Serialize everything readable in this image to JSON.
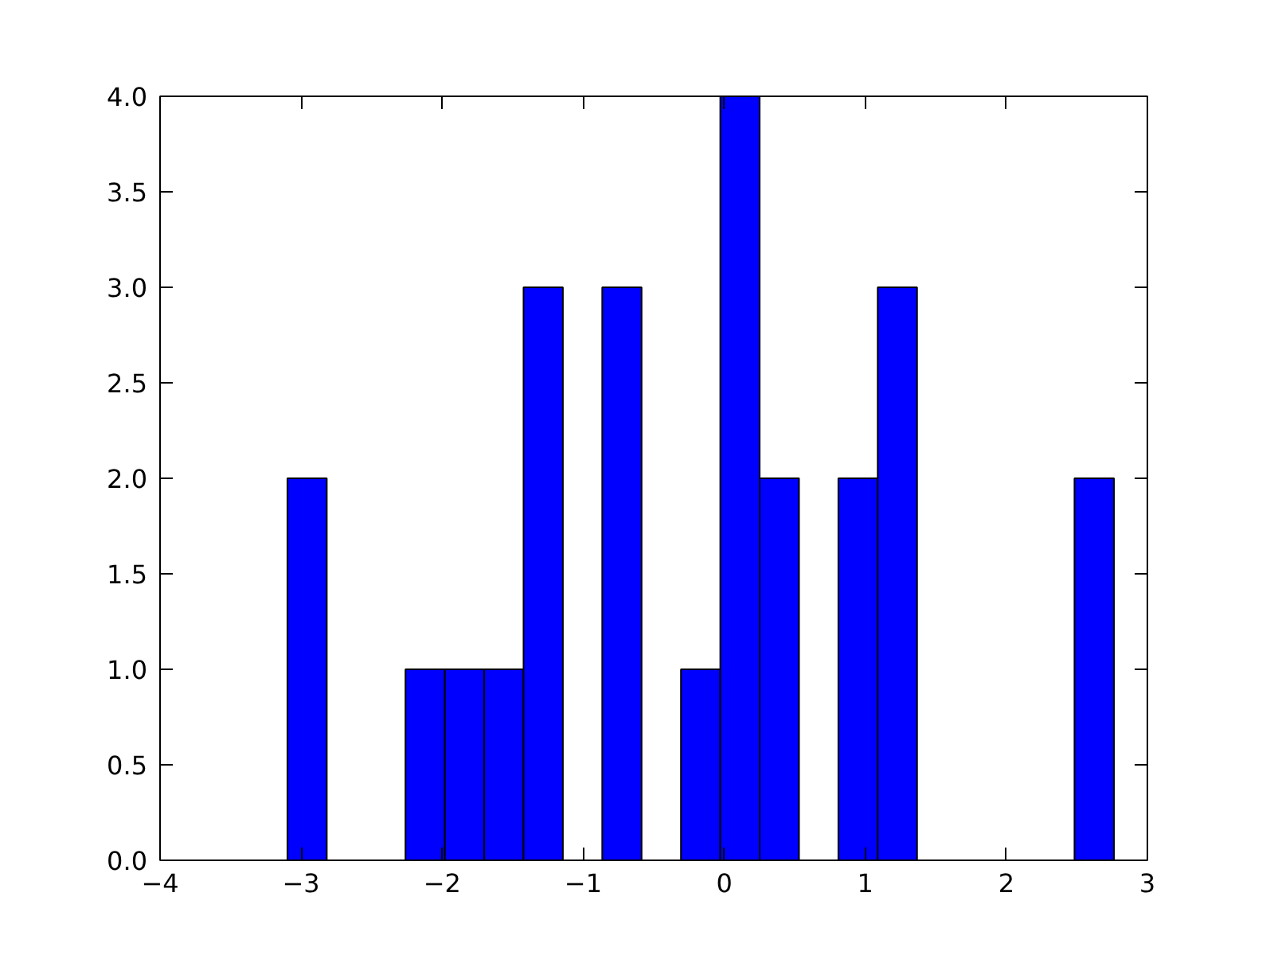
{
  "chart_data": {
    "type": "histogram",
    "bins": [
      -3.097,
      -2.818,
      -2.539,
      -2.26,
      -1.981,
      -1.702,
      -1.423,
      -1.144,
      -0.865,
      -0.586,
      -0.307,
      -0.028,
      0.251,
      0.53,
      0.809,
      1.088,
      1.367,
      1.646,
      1.925,
      2.204,
      2.483,
      2.763
    ],
    "values": [
      2,
      0,
      0,
      1,
      1,
      1,
      3,
      0,
      3,
      0,
      1,
      4,
      2,
      0,
      2,
      3,
      0,
      0,
      0,
      0,
      2
    ],
    "color": "#0000ff",
    "xlim": [
      -4,
      3
    ],
    "xticks": [
      {
        "value": -4,
        "label": "−4"
      },
      {
        "value": -3,
        "label": "−3"
      },
      {
        "value": -2,
        "label": "−2"
      },
      {
        "value": -1,
        "label": "−1"
      },
      0,
      1,
      2,
      3
    ],
    "ylim": [
      0,
      4
    ],
    "yticks": [
      {
        "value": 0,
        "label": "0.0"
      },
      {
        "value": 0.5,
        "label": "0.5"
      },
      {
        "value": 1,
        "label": "1.0"
      },
      {
        "value": 1.5,
        "label": "1.5"
      },
      {
        "value": 2,
        "label": "2.0"
      },
      {
        "value": 2.5,
        "label": "2.5"
      },
      {
        "value": 3,
        "label": "3.0"
      },
      {
        "value": 3.5,
        "label": "3.5"
      },
      {
        "value": 4,
        "label": "4.0"
      }
    ],
    "grid": false
  }
}
